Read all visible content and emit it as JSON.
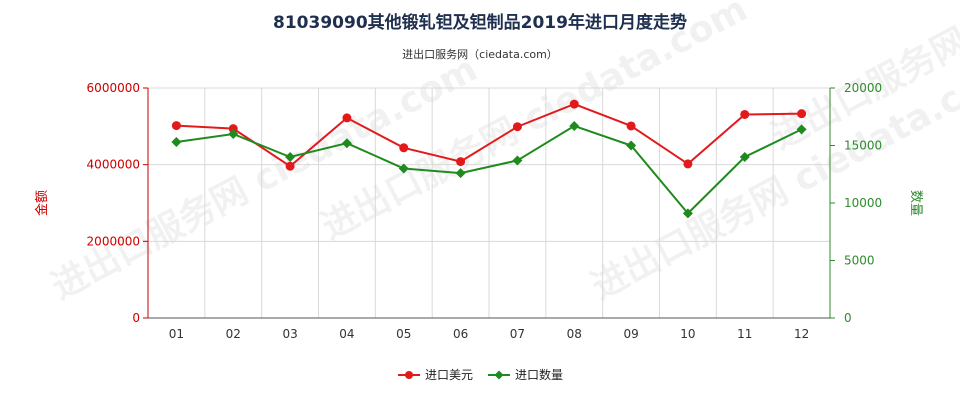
{
  "header": {
    "title": "81039090其他锻轧钽及钽制品2019年进口月度走势",
    "subtitle": "进出口服务网（ciedata.com）"
  },
  "watermark": "进出口服务网 ciedata.com",
  "colors": {
    "series_amount": "#e31a1c",
    "series_quantity": "#1f8b1f",
    "left_axis": "#cc0000",
    "right_axis": "#2e8b2e"
  },
  "chart_data": {
    "type": "line",
    "categories": [
      "01",
      "02",
      "03",
      "04",
      "05",
      "06",
      "07",
      "08",
      "09",
      "10",
      "11",
      "12"
    ],
    "series": [
      {
        "name": "进口美元",
        "axis": "left",
        "values": [
          5020000,
          4940000,
          3960000,
          5220000,
          4440000,
          4080000,
          4990000,
          5580000,
          5010000,
          4020000,
          5310000,
          5330000
        ]
      },
      {
        "name": "进口数量",
        "axis": "right",
        "values": [
          15300,
          16000,
          14000,
          15200,
          13000,
          12600,
          13700,
          16700,
          15000,
          9100,
          14000,
          16400
        ]
      }
    ],
    "ylabel_left": "金额",
    "ylabel_right": "数量",
    "ylim_left": [
      0,
      6000000
    ],
    "ylim_right": [
      0,
      20000
    ],
    "yticks_left": [
      "0",
      "2000000",
      "4000000",
      "6000000"
    ],
    "yticks_right": [
      "0",
      "5000",
      "10000",
      "15000",
      "20000"
    ],
    "grid": true,
    "legend_position": "bottom"
  }
}
